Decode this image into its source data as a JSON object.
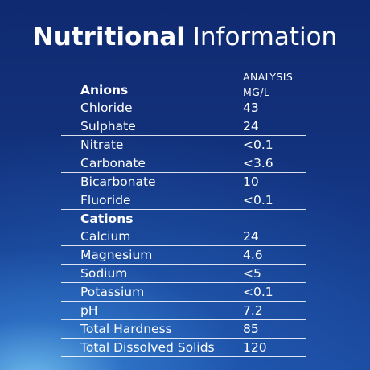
{
  "title": {
    "bold": "Nutritional",
    "light": "Information"
  },
  "column_header": {
    "line1": "ANALYSIS",
    "line2": "MG/L"
  },
  "sections": [
    {
      "heading": "Anions",
      "rows": [
        {
          "name": "Chloride",
          "value": "43"
        },
        {
          "name": "Sulphate",
          "value": "24"
        },
        {
          "name": "Nitrate",
          "value": "<0.1"
        },
        {
          "name": "Carbonate",
          "value": "<3.6"
        },
        {
          "name": "Bicarbonate",
          "value": "10"
        },
        {
          "name": "Fluoride",
          "value": "<0.1"
        }
      ]
    },
    {
      "heading": "Cations",
      "rows": [
        {
          "name": "Calcium",
          "value": "24"
        },
        {
          "name": "Magnesium",
          "value": "4.6"
        },
        {
          "name": "Sodium",
          "value": "<5"
        },
        {
          "name": "Potassium",
          "value": "<0.1"
        },
        {
          "name": "pH",
          "value": "7.2"
        },
        {
          "name": "Total Hardness",
          "value": "85"
        },
        {
          "name": "Total Dissolved Solids",
          "value": "120"
        }
      ]
    }
  ]
}
